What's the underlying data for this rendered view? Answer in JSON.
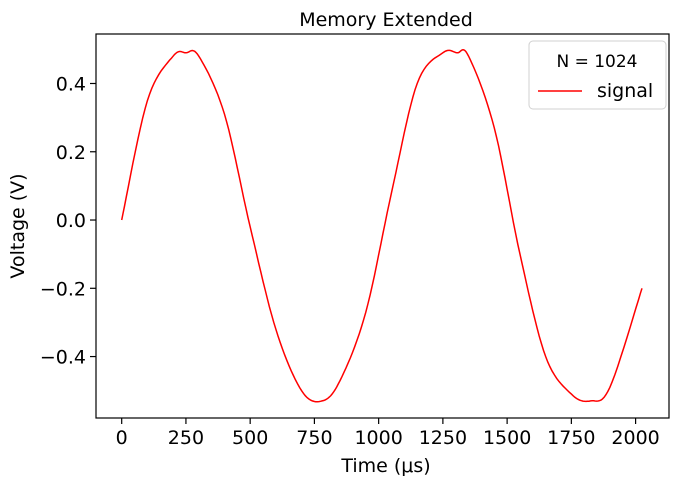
{
  "chart_data": {
    "type": "line",
    "title": "Memory Extended",
    "xlabel": "Time (μs)",
    "ylabel": "Voltage (V)",
    "xlim": [
      -100,
      2130
    ],
    "ylim": [
      -0.58,
      0.545
    ],
    "xticks": [
      0,
      250,
      500,
      750,
      1000,
      1250,
      1500,
      1750,
      2000
    ],
    "xtick_labels": [
      "0",
      "250",
      "500",
      "750",
      "1000",
      "1250",
      "1500",
      "1750",
      "2000"
    ],
    "yticks": [
      0.4,
      0.2,
      0.0,
      -0.2,
      -0.4
    ],
    "ytick_labels": [
      "0.4",
      "0.2",
      "0.0",
      "−0.2",
      "−0.4"
    ],
    "grid": false,
    "legend": {
      "title": "N = 1024",
      "placement": "top-right",
      "entries": [
        "signal"
      ]
    },
    "series": [
      {
        "name": "signal",
        "color": "#ff0000",
        "x": [
          0,
          100,
          200,
          250,
          300,
          400,
          500,
          600,
          700,
          780,
          850,
          950,
          1050,
          1150,
          1250,
          1305,
          1350,
          1450,
          1550,
          1650,
          1750,
          1825,
          1900,
          2025
        ],
        "y": [
          0.0,
          0.35,
          0.48,
          0.49,
          0.48,
          0.31,
          -0.02,
          -0.32,
          -0.5,
          -0.53,
          -0.47,
          -0.27,
          0.08,
          0.4,
          0.49,
          0.49,
          0.48,
          0.27,
          -0.1,
          -0.4,
          -0.51,
          -0.53,
          -0.49,
          -0.2
        ]
      }
    ]
  }
}
